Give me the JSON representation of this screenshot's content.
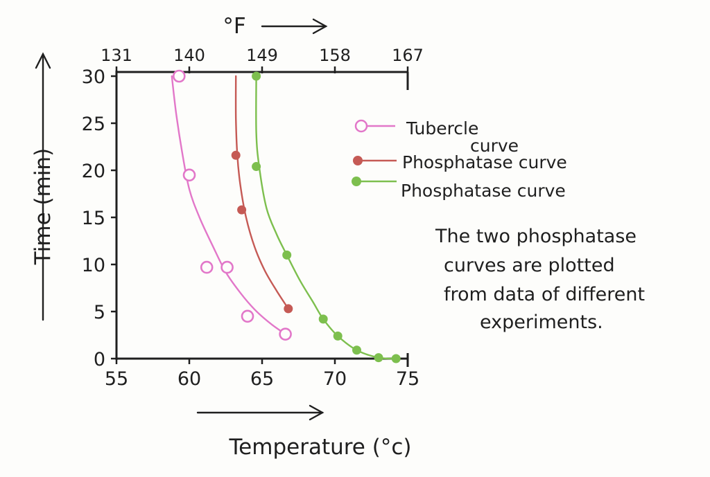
{
  "chart_data": {
    "type": "scatter",
    "title": "",
    "xlabel": "Temperature (°c)",
    "ylabel": "Time (min)",
    "x2label": "°F",
    "xlim": [
      55,
      75
    ],
    "ylim": [
      0,
      30
    ],
    "x_ticks": [
      "55",
      "60",
      "65",
      "70",
      "75"
    ],
    "y_ticks": [
      "0",
      "5",
      "10",
      "15",
      "20",
      "25",
      "30"
    ],
    "x2_ticks": [
      {
        "label": "131",
        "value": 55
      },
      {
        "label": "140",
        "value": 60
      },
      {
        "label": "149",
        "value": 65
      },
      {
        "label": "158",
        "value": 70
      },
      {
        "label": "167",
        "value": 75
      }
    ],
    "series": [
      {
        "name": "Tubercle curve",
        "color": "#e277c9",
        "marker": "open-circle",
        "x": [
          59.3,
          60.0,
          61.2,
          62.6,
          64.0,
          66.6
        ],
        "y": [
          30,
          19.5,
          9.7,
          9.7,
          4.5,
          2.6
        ],
        "curve_x": [
          58.8,
          59.1,
          59.5,
          60.0,
          60.7,
          61.6,
          62.5,
          63.5,
          64.5,
          65.6,
          66.6
        ],
        "curve_y": [
          30,
          26,
          22,
          18,
          15,
          12,
          9.2,
          7.0,
          5.2,
          3.7,
          2.6
        ]
      },
      {
        "name": "Phosphatase curve",
        "color": "#c55a55",
        "marker": "filled-circle",
        "x": [
          63.2,
          63.6,
          66.8
        ],
        "y": [
          21.6,
          15.8,
          5.3
        ],
        "curve_x": [
          63.2,
          63.2,
          63.3,
          63.5,
          63.9,
          64.5,
          65.2,
          66.0,
          66.8
        ],
        "curve_y": [
          30,
          25.5,
          21.6,
          18.5,
          15.0,
          11.8,
          9.3,
          7.2,
          5.3
        ]
      },
      {
        "name": "Phosphatase curve",
        "color": "#7dbf4e",
        "marker": "filled-circle",
        "x": [
          64.6,
          64.6,
          66.7,
          69.2,
          70.2,
          71.5,
          73.0,
          74.2
        ],
        "y": [
          30,
          20.4,
          11.0,
          4.2,
          2.4,
          0.9,
          0.1,
          0
        ],
        "curve_x": [
          64.6,
          64.6,
          64.8,
          65.3,
          66.0,
          66.7,
          67.6,
          68.5,
          69.2,
          70.2,
          71.5,
          73.0,
          74.2
        ],
        "curve_y": [
          30,
          24,
          20.4,
          16.0,
          13.2,
          11.0,
          8.3,
          6.0,
          4.2,
          2.4,
          0.9,
          0.1,
          0
        ]
      }
    ],
    "legend": {
      "position": "right",
      "entries": [
        "Tubercle curve",
        "Phosphatase curve",
        "Phosphatase curve"
      ]
    },
    "grid": false
  },
  "annotation": {
    "lines": [
      "The two phosphatase",
      "curves are plotted",
      "from data of different",
      "experiments."
    ]
  },
  "tubercle_label": {
    "lines": [
      "Tubercle",
      "curve"
    ]
  }
}
